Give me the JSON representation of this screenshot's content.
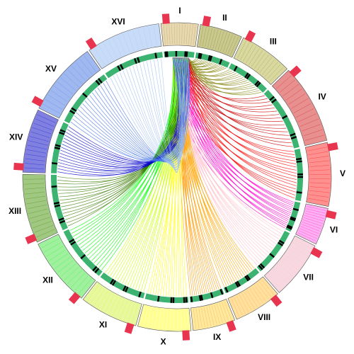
{
  "chart_data": {
    "type": "circos",
    "categories": [
      "I",
      "II",
      "III",
      "IV",
      "V",
      "VI",
      "VII",
      "VIII",
      "IX",
      "X",
      "XI",
      "XII",
      "XIII",
      "XIV",
      "XV",
      "XVI"
    ],
    "values": [
      14,
      16,
      20,
      30,
      24,
      14,
      22,
      18,
      16,
      20,
      22,
      26,
      26,
      24,
      28,
      28
    ],
    "link_colors": [
      null,
      "#808000",
      "#8a8a1a",
      "#cc0000",
      "#ff0000",
      "#ff00cc",
      "#ffc0cb",
      "#ffa500",
      "#ff9900",
      "#ffff00",
      "#ccff00",
      "#00ff00",
      "#3a7d00",
      "#0000cc",
      "#4a78e8",
      "#9fc0f5"
    ],
    "sector_colors": [
      "#e8d8b0",
      "#c8c890",
      "#d8d8a0",
      "#e89090",
      "#ff9090",
      "#ffb0f0",
      "#f8d8e0",
      "#ffe0a0",
      "#ffe8a0",
      "#ffffa0",
      "#e8f8a0",
      "#a0f0a0",
      "#a0c880",
      "#8080e0",
      "#a0b8f0",
      "#c8dcf8"
    ]
  }
}
